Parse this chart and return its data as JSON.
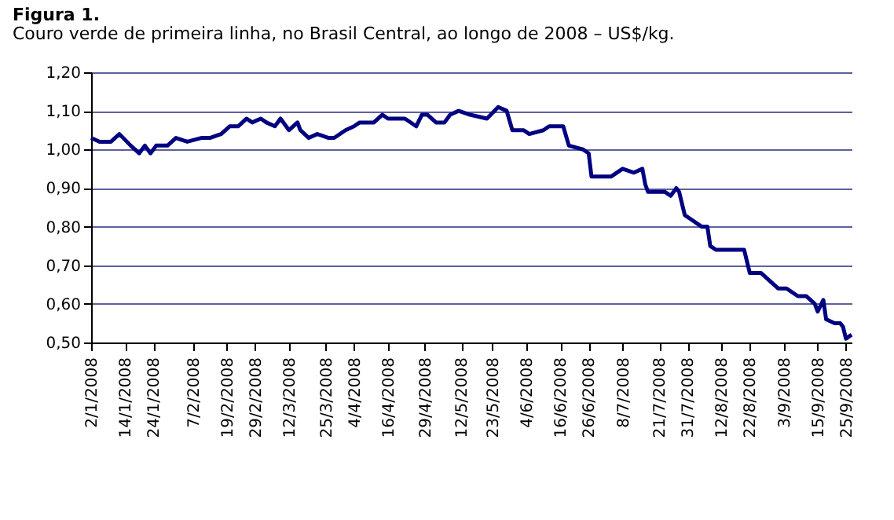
{
  "chart_data": {
    "type": "line",
    "title": "Figura 1.",
    "subtitle": "Couro verde de primeira linha, no Brasil Central, ao longo de 2008 – US$/kg.",
    "x": [
      "2008-01-02",
      "2008-01-05",
      "2008-01-09",
      "2008-01-12",
      "2008-01-16",
      "2008-01-19",
      "2008-01-21",
      "2008-01-23",
      "2008-01-25",
      "2008-01-29",
      "2008-02-01",
      "2008-02-05",
      "2008-02-10",
      "2008-02-13",
      "2008-02-17",
      "2008-02-20",
      "2008-02-23",
      "2008-02-26",
      "2008-02-28",
      "2008-03-02",
      "2008-03-04",
      "2008-03-07",
      "2008-03-09",
      "2008-03-12",
      "2008-03-15",
      "2008-03-16",
      "2008-03-19",
      "2008-03-22",
      "2008-03-26",
      "2008-03-28",
      "2008-04-01",
      "2008-04-04",
      "2008-04-06",
      "2008-04-11",
      "2008-04-14",
      "2008-04-16",
      "2008-04-19",
      "2008-04-22",
      "2008-04-26",
      "2008-04-28",
      "2008-04-30",
      "2008-05-03",
      "2008-05-06",
      "2008-05-08",
      "2008-05-11",
      "2008-05-15",
      "2008-05-21",
      "2008-05-25",
      "2008-05-28",
      "2008-05-30",
      "2008-06-03",
      "2008-06-05",
      "2008-06-10",
      "2008-06-12",
      "2008-06-17",
      "2008-06-19",
      "2008-06-24",
      "2008-06-26",
      "2008-06-27",
      "2008-07-01",
      "2008-07-04",
      "2008-07-08",
      "2008-07-12",
      "2008-07-15",
      "2008-07-16",
      "2008-07-17",
      "2008-07-23",
      "2008-07-25",
      "2008-07-27",
      "2008-07-28",
      "2008-07-30",
      "2008-08-01",
      "2008-08-05",
      "2008-08-07",
      "2008-08-08",
      "2008-08-10",
      "2008-08-14",
      "2008-08-17",
      "2008-08-20",
      "2008-08-22",
      "2008-08-26",
      "2008-08-29",
      "2008-09-01",
      "2008-09-04",
      "2008-09-08",
      "2008-09-11",
      "2008-09-14",
      "2008-09-15",
      "2008-09-17",
      "2008-09-18",
      "2008-09-21",
      "2008-09-23",
      "2008-09-24",
      "2008-09-25",
      "2008-09-27"
    ],
    "series": [
      {
        "color": "#000080",
        "values": [
          1.03,
          1.02,
          1.02,
          1.04,
          1.01,
          0.99,
          1.01,
          0.99,
          1.01,
          1.01,
          1.03,
          1.02,
          1.03,
          1.03,
          1.04,
          1.06,
          1.06,
          1.08,
          1.07,
          1.08,
          1.07,
          1.06,
          1.08,
          1.05,
          1.07,
          1.05,
          1.03,
          1.04,
          1.03,
          1.03,
          1.05,
          1.06,
          1.07,
          1.07,
          1.09,
          1.08,
          1.08,
          1.08,
          1.06,
          1.09,
          1.09,
          1.07,
          1.07,
          1.09,
          1.1,
          1.09,
          1.08,
          1.11,
          1.1,
          1.05,
          1.05,
          1.04,
          1.05,
          1.06,
          1.06,
          1.01,
          1.0,
          0.99,
          0.93,
          0.93,
          0.93,
          0.95,
          0.94,
          0.95,
          0.91,
          0.89,
          0.89,
          0.88,
          0.9,
          0.89,
          0.83,
          0.82,
          0.8,
          0.8,
          0.75,
          0.74,
          0.74,
          0.74,
          0.74,
          0.68,
          0.68,
          0.66,
          0.64,
          0.64,
          0.62,
          0.62,
          0.6,
          0.58,
          0.61,
          0.56,
          0.55,
          0.55,
          0.54,
          0.51,
          0.52
        ]
      }
    ],
    "ylim": [
      0.5,
      1.2
    ],
    "yticks": [
      {
        "value": 0.5,
        "label": "0,50"
      },
      {
        "value": 0.6,
        "label": "0,60"
      },
      {
        "value": 0.7,
        "label": "0,70"
      },
      {
        "value": 0.8,
        "label": "0,80"
      },
      {
        "value": 0.9,
        "label": "0,90"
      },
      {
        "value": 1.0,
        "label": "1,00"
      },
      {
        "value": 1.1,
        "label": "1,10"
      },
      {
        "value": 1.2,
        "label": "1,20"
      }
    ],
    "xlim": [
      "2008-01-02",
      "2008-09-27"
    ],
    "xticks": [
      {
        "value": "2008-01-02",
        "label": "2/1/2008"
      },
      {
        "value": "2008-01-14",
        "label": "14/1/2008"
      },
      {
        "value": "2008-01-24",
        "label": "24/1/2008"
      },
      {
        "value": "2008-02-07",
        "label": "7/2/2008"
      },
      {
        "value": "2008-02-19",
        "label": "19/2/2008"
      },
      {
        "value": "2008-02-29",
        "label": "29/2/2008"
      },
      {
        "value": "2008-03-12",
        "label": "12/3/2008"
      },
      {
        "value": "2008-03-25",
        "label": "25/3/2008"
      },
      {
        "value": "2008-04-04",
        "label": "4/4/2008"
      },
      {
        "value": "2008-04-16",
        "label": "16/4/2008"
      },
      {
        "value": "2008-04-29",
        "label": "29/4/2008"
      },
      {
        "value": "2008-05-12",
        "label": "12/5/2008"
      },
      {
        "value": "2008-05-23",
        "label": "23/5/2008"
      },
      {
        "value": "2008-06-04",
        "label": "4/6/2008"
      },
      {
        "value": "2008-06-16",
        "label": "16/6/2008"
      },
      {
        "value": "2008-06-26",
        "label": "26/6/2008"
      },
      {
        "value": "2008-07-08",
        "label": "8/7/2008"
      },
      {
        "value": "2008-07-21",
        "label": "21/7/2008"
      },
      {
        "value": "2008-07-31",
        "label": "31/7/2008"
      },
      {
        "value": "2008-08-12",
        "label": "12/8/2008"
      },
      {
        "value": "2008-08-22",
        "label": "22/8/2008"
      },
      {
        "value": "2008-09-03",
        "label": "3/9/2008"
      },
      {
        "value": "2008-09-15",
        "label": "15/9/2008"
      },
      {
        "value": "2008-09-25",
        "label": "25/9/2008"
      }
    ],
    "grid": "y"
  }
}
